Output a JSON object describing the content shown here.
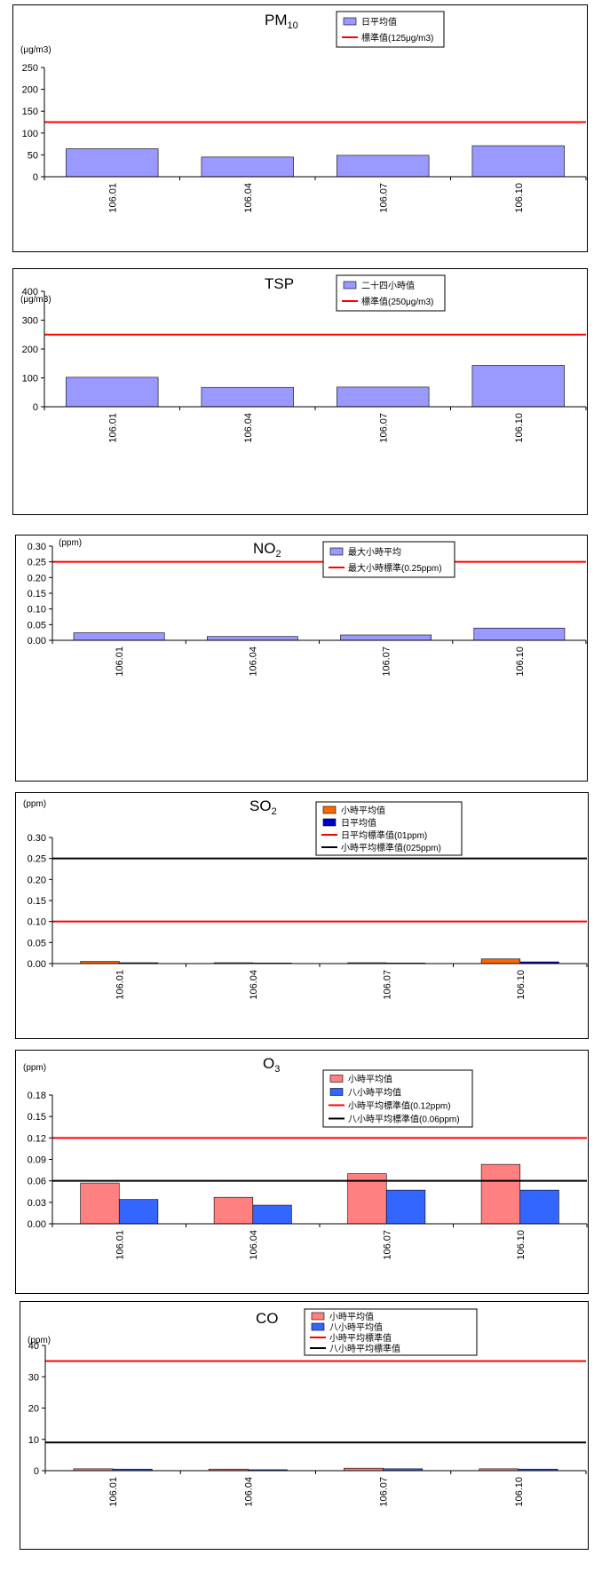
{
  "chart_data": [
    {
      "type": "bar",
      "title": "PM",
      "title_sub": "10",
      "unit": "(μg/m3)",
      "categories": [
        "106.01",
        "106.04",
        "106.07",
        "106.10"
      ],
      "ylim": [
        0,
        250
      ],
      "yticks": [
        "0",
        "50",
        "100",
        "150",
        "200",
        "250"
      ],
      "series": [
        {
          "name": "日平均值",
          "color": "#9999ff",
          "values": [
            64,
            45,
            49,
            71
          ]
        }
      ],
      "reference_lines": [
        {
          "name": "標準值(125μg/m3)",
          "color": "#ff0000",
          "value": 125
        }
      ]
    },
    {
      "type": "bar",
      "title": "TSP",
      "title_sub": "",
      "unit": "(μg/m3)",
      "categories": [
        "106.01",
        "106.04",
        "106.07",
        "106.10"
      ],
      "ylim": [
        0,
        400
      ],
      "yticks": [
        "0",
        "100",
        "200",
        "300",
        "400"
      ],
      "series": [
        {
          "name": "二十四小時值",
          "color": "#9999ff",
          "values": [
            102,
            67,
            68,
            143
          ]
        }
      ],
      "reference_lines": [
        {
          "name": "標準值(250μg/m3)",
          "color": "#ff0000",
          "value": 250
        }
      ]
    },
    {
      "type": "bar",
      "title": "NO",
      "title_sub": "2",
      "unit": "(ppm)",
      "categories": [
        "106.01",
        "106.04",
        "106.07",
        "106.10"
      ],
      "ylim": [
        0,
        0.3
      ],
      "yticks": [
        "0.00",
        "0.05",
        "0.10",
        "0.15",
        "0.20",
        "0.25",
        "0.30"
      ],
      "series": [
        {
          "name": "最大小時平均",
          "color": "#9999ff",
          "values": [
            0.024,
            0.012,
            0.017,
            0.039
          ]
        }
      ],
      "reference_lines": [
        {
          "name": "最大小時標準(0.25ppm)",
          "color": "#ff0000",
          "value": 0.25
        }
      ]
    },
    {
      "type": "bar",
      "title": "SO",
      "title_sub": "2",
      "unit": "(ppm)",
      "categories": [
        "106.01",
        "106.04",
        "106.07",
        "106.10"
      ],
      "ylim": [
        0,
        0.3
      ],
      "yticks": [
        "0.00",
        "0.05",
        "0.10",
        "0.15",
        "0.20",
        "0.25",
        "0.30"
      ],
      "series": [
        {
          "name": "小時平均值",
          "color": "#ff6600",
          "values": [
            0.005,
            0.002,
            0.002,
            0.011
          ]
        },
        {
          "name": "日平均值",
          "color": "#0000cc",
          "values": [
            0.002,
            0.001,
            0.001,
            0.004
          ]
        }
      ],
      "reference_lines": [
        {
          "name": "日平均標準值(01ppm)",
          "color": "#ff0000",
          "value": 0.1
        },
        {
          "name": "小時平均標準值(025ppm)",
          "color": "#000000",
          "value": 0.25
        }
      ]
    },
    {
      "type": "bar",
      "title": "O",
      "title_sub": "3",
      "unit": "(ppm)",
      "categories": [
        "106.01",
        "106.04",
        "106.07",
        "106.10"
      ],
      "ylim": [
        0,
        0.18
      ],
      "yticks": [
        "0.00",
        "0.03",
        "0.06",
        "0.09",
        "0.12",
        "0.15",
        "0.18"
      ],
      "series": [
        {
          "name": "小時平均值",
          "color": "#ff8080",
          "values": [
            0.057,
            0.037,
            0.07,
            0.083
          ]
        },
        {
          "name": "八小時平均值",
          "color": "#3366ff",
          "values": [
            0.034,
            0.026,
            0.047,
            0.047
          ]
        }
      ],
      "reference_lines": [
        {
          "name": "小時平均標準值(0.12ppm)",
          "color": "#ff0000",
          "value": 0.12
        },
        {
          "name": "八小時平均標準值(0.06ppm)",
          "color": "#000000",
          "value": 0.06
        }
      ]
    },
    {
      "type": "bar",
      "title": "CO",
      "title_sub": "",
      "unit": "(ppm)",
      "categories": [
        "106.01",
        "106.04",
        "106.07",
        "106.10"
      ],
      "ylim": [
        0,
        40
      ],
      "yticks": [
        "0",
        "10",
        "20",
        "30",
        "40"
      ],
      "series": [
        {
          "name": "小時平均值",
          "color": "#ff8080",
          "values": [
            0.6,
            0.5,
            0.8,
            0.6
          ]
        },
        {
          "name": "八小時平均值",
          "color": "#3366ff",
          "values": [
            0.5,
            0.3,
            0.6,
            0.5
          ]
        }
      ],
      "reference_lines": [
        {
          "name": "小時平均標準值",
          "color": "#ff0000",
          "value": 35
        },
        {
          "name": "八小時平均標準值",
          "color": "#000000",
          "value": 9
        }
      ]
    }
  ]
}
